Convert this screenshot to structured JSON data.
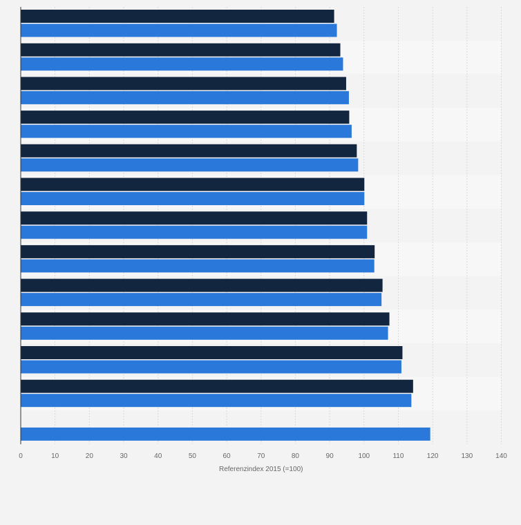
{
  "chart_data": {
    "type": "bar",
    "orientation": "horizontal",
    "xlabel": "Referenzindex 2015 (=100)",
    "xlim": [
      0,
      140
    ],
    "xticks": [
      0,
      10,
      20,
      30,
      40,
      50,
      60,
      70,
      80,
      90,
      100,
      110,
      120,
      130,
      140
    ],
    "grid": true,
    "legend": "none",
    "colors": {
      "series_dark": "#12263f",
      "series_blue": "#2a78d9",
      "grid": "#d9d9d9",
      "band": "#f7f7f8",
      "background": "#f3f3f4"
    },
    "categories": [
      "",
      "",
      "",
      "",
      "",
      "",
      "",
      "",
      "",
      "",
      "",
      "",
      ""
    ],
    "series": [
      {
        "values": [
          91.3,
          93.1,
          94.8,
          95.7,
          97.9,
          100.1,
          100.9,
          103.1,
          105.4,
          107.4,
          111.2,
          114.3,
          null
        ]
      },
      {
        "values": [
          92.1,
          93.9,
          95.6,
          96.4,
          98.3,
          100.1,
          100.9,
          103.0,
          105.1,
          107.0,
          110.9,
          113.8,
          119.3
        ]
      }
    ]
  }
}
